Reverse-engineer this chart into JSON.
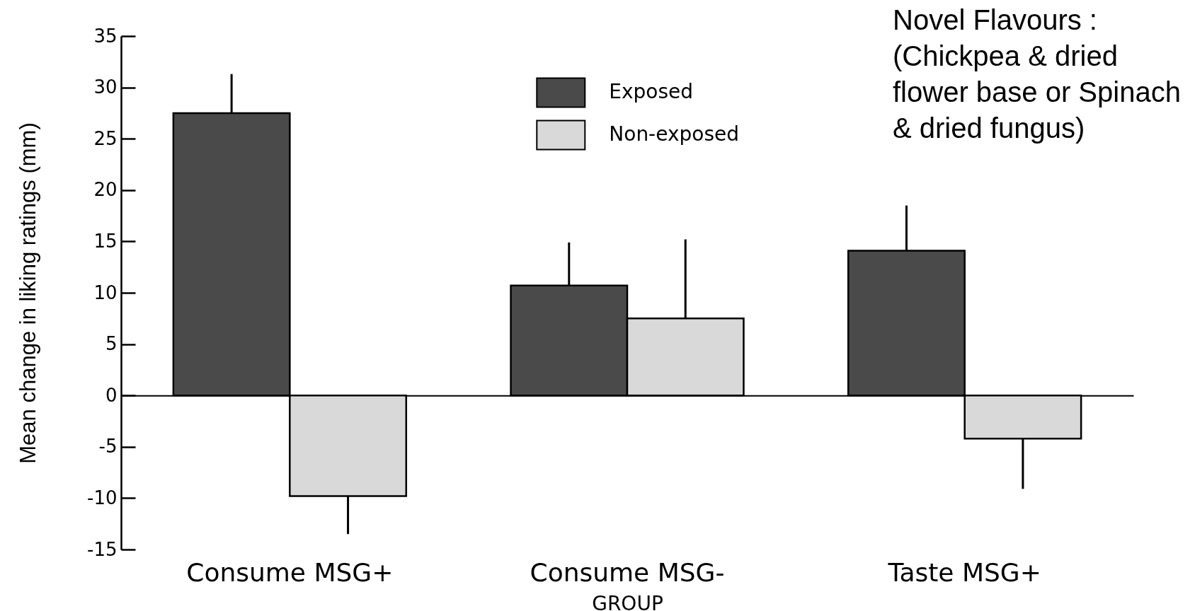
{
  "chart_data": {
    "type": "bar",
    "title": "Novel Flavours :\n(Chickpea & dried\nflower base or Spinach\n& dried fungus)",
    "xlabel": "GROUP",
    "ylabel": "Mean change in liking ratings (mm)",
    "categories": [
      "Consume MSG+",
      "Consume MSG-",
      "Taste MSG+"
    ],
    "series": [
      {
        "name": "Exposed",
        "color": "#4a4a4a",
        "values": [
          27.5,
          10.7,
          14.1
        ],
        "errors": [
          [
            27.5,
            31.3
          ],
          [
            10.7,
            14.9
          ],
          [
            14.1,
            18.5
          ]
        ]
      },
      {
        "name": "Non-exposed",
        "color": "#d9d9d9",
        "values": [
          -9.8,
          7.5,
          -4.2
        ],
        "errors": [
          [
            -13.5,
            -9.8
          ],
          [
            7.5,
            15.2
          ],
          [
            -9.1,
            -4.2
          ]
        ]
      }
    ],
    "ylim": [
      -15,
      35
    ],
    "yticks": [
      -15,
      -10,
      -5,
      0,
      5,
      10,
      15,
      20,
      25,
      30,
      35
    ],
    "legend": "top"
  }
}
